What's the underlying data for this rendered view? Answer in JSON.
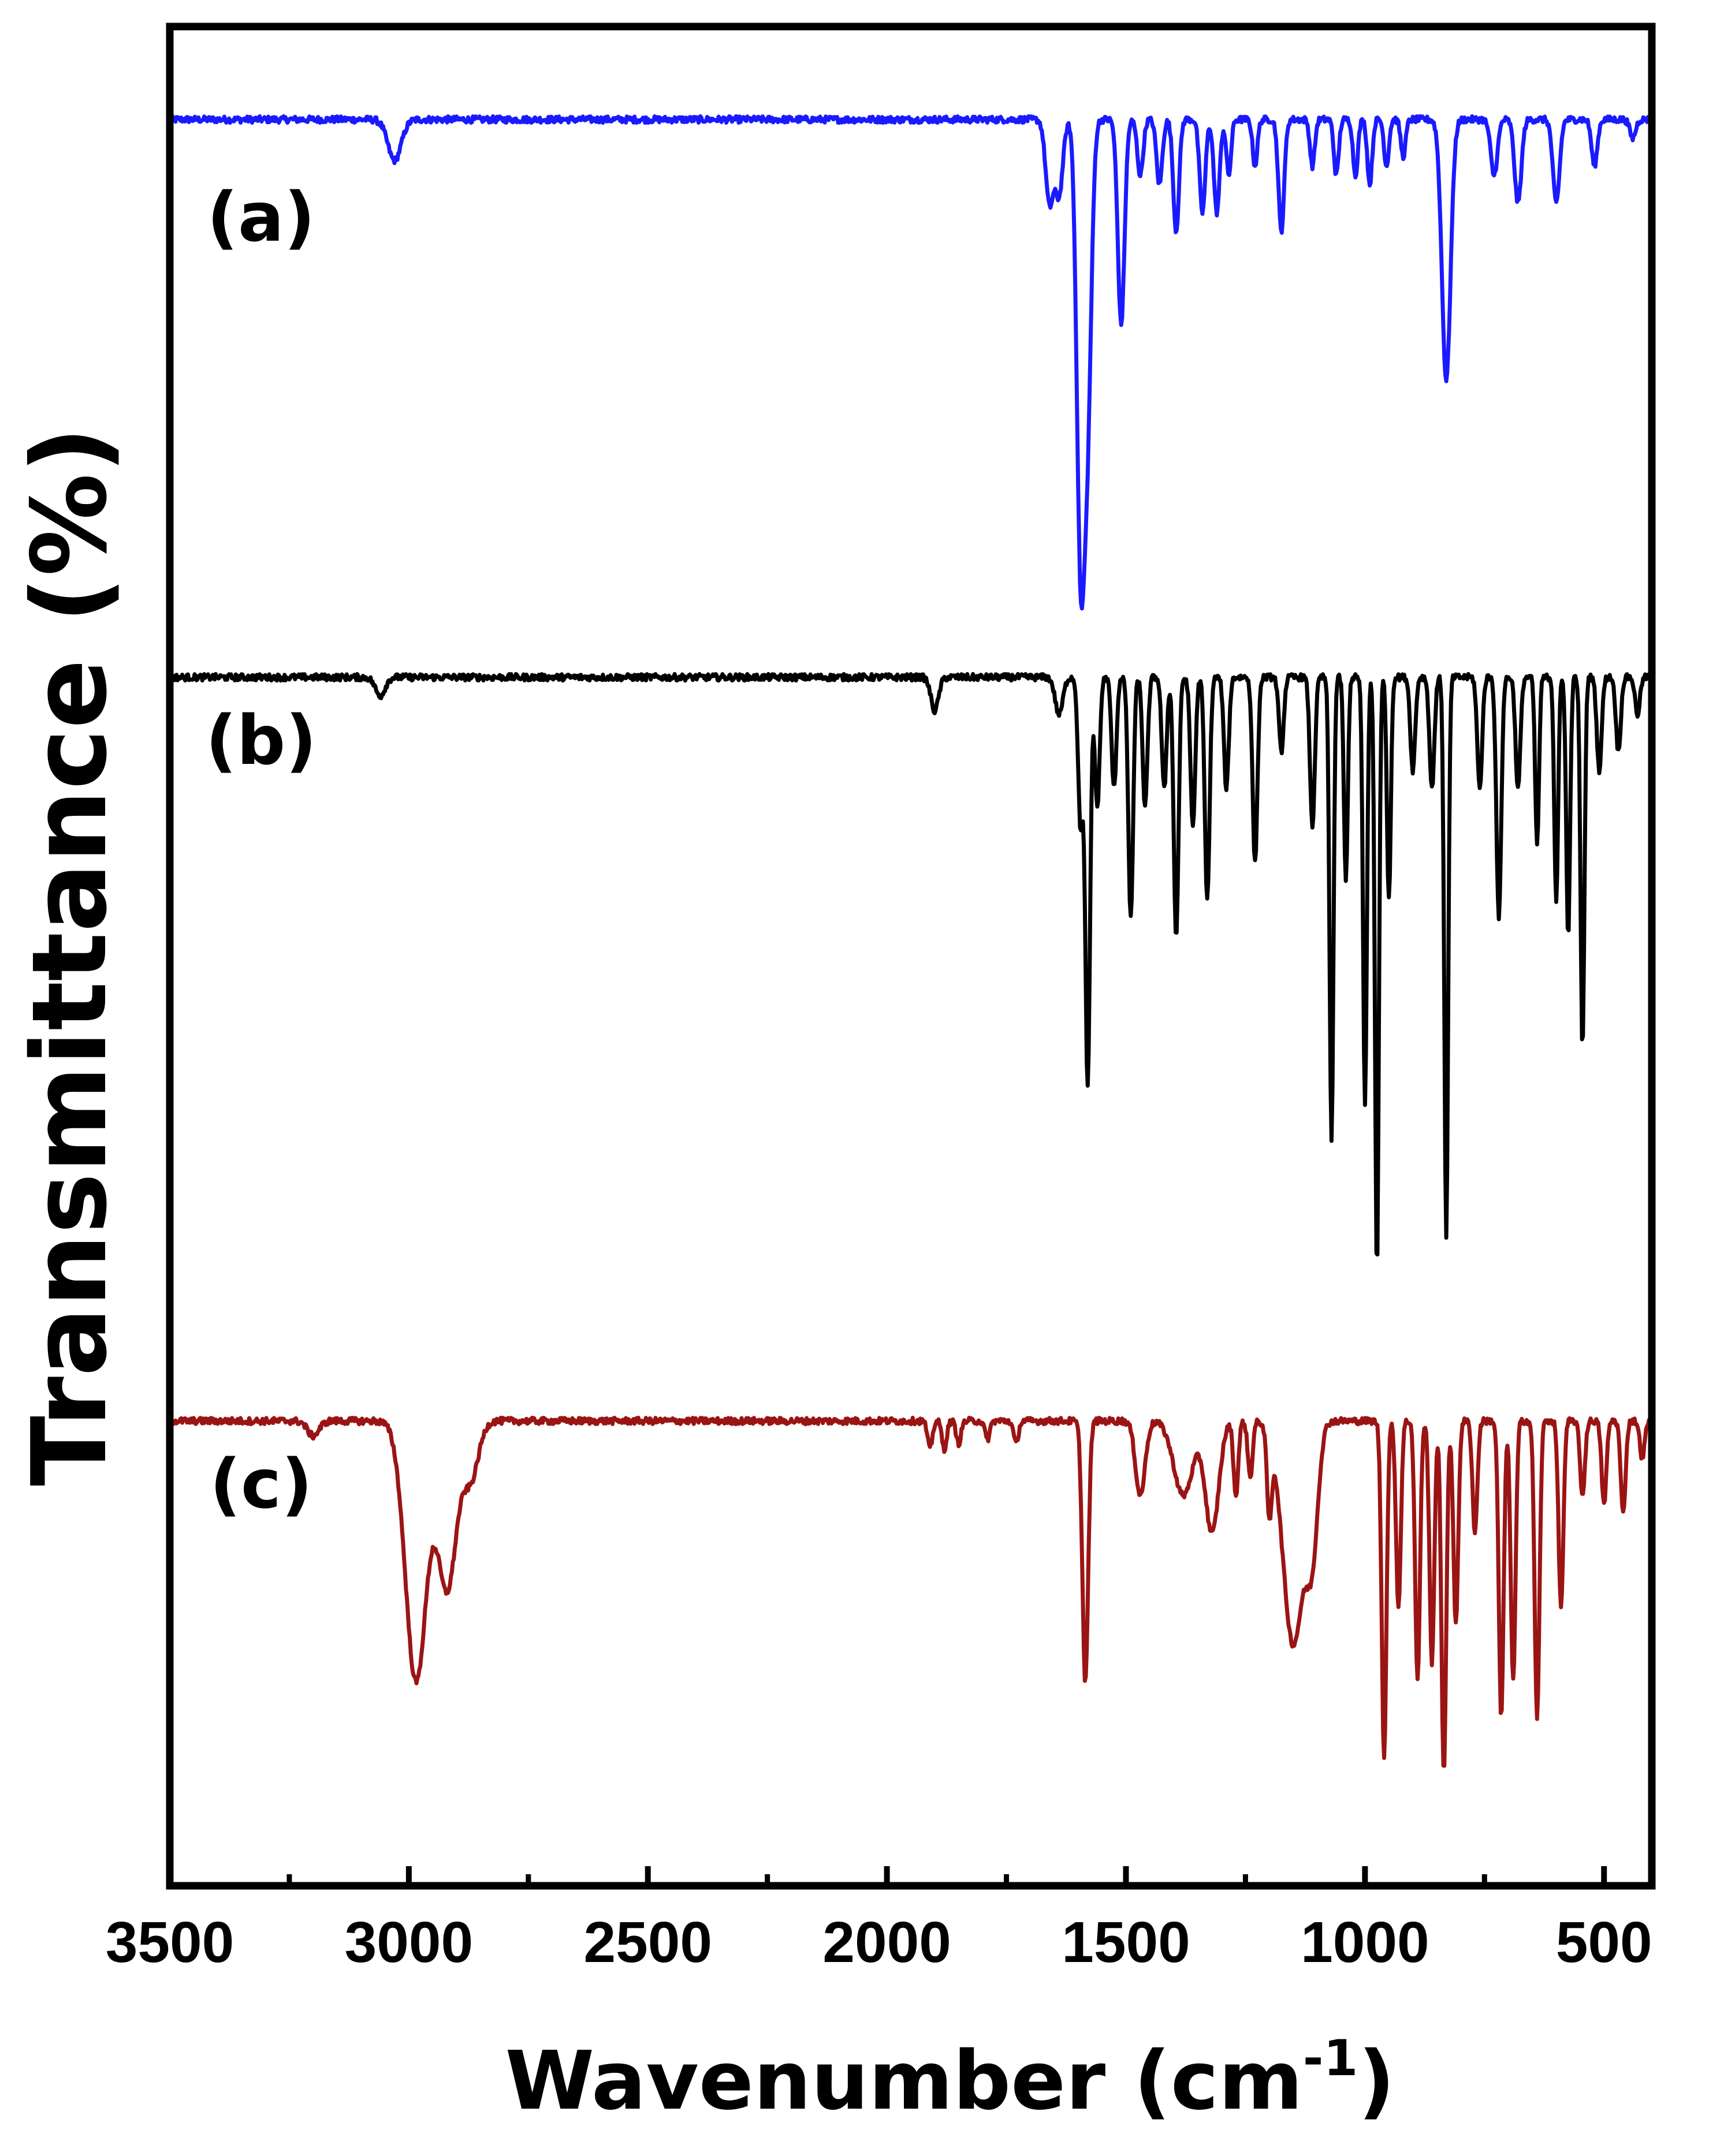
{
  "chart_data": {
    "type": "line",
    "title": "",
    "xlabel": "Wavenumber (cm",
    "xlabel_sup": "-1",
    "xlabel_close": ")",
    "ylabel": "Transmittance  (%)",
    "xlim": [
      3500,
      400
    ],
    "x_reversed": true,
    "ylim": [
      0,
      100
    ],
    "grid": false,
    "x_ticks": [
      3500,
      3000,
      2500,
      2000,
      1500,
      1000,
      500
    ],
    "x_tick_labels": [
      "3500",
      "3000",
      "2500",
      "2000",
      "1500",
      "1000",
      "500"
    ],
    "x_minor_ticks": [
      3250,
      2750,
      2250,
      1750,
      1250,
      750
    ],
    "series": [
      {
        "name": "(a)",
        "label": "(a)",
        "color": "#1a1aff",
        "baseline": 95,
        "peaks": [
          {
            "x": 3030,
            "depth": 2.2,
            "width": 14
          },
          {
            "x": 1660,
            "depth": 4.5,
            "width": 8
          },
          {
            "x": 1640,
            "depth": 4.0,
            "width": 8
          },
          {
            "x": 1595,
            "depth": 23.0,
            "width": 8
          },
          {
            "x": 1580,
            "depth": 15.0,
            "width": 8
          },
          {
            "x": 1510,
            "depth": 11.0,
            "width": 7
          },
          {
            "x": 1470,
            "depth": 3.0,
            "width": 6
          },
          {
            "x": 1430,
            "depth": 3.5,
            "width": 6
          },
          {
            "x": 1395,
            "depth": 6.0,
            "width": 6
          },
          {
            "x": 1340,
            "depth": 5.0,
            "width": 6
          },
          {
            "x": 1310,
            "depth": 5.0,
            "width": 6
          },
          {
            "x": 1285,
            "depth": 3.0,
            "width": 5
          },
          {
            "x": 1230,
            "depth": 2.5,
            "width": 5
          },
          {
            "x": 1175,
            "depth": 6.0,
            "width": 6
          },
          {
            "x": 1110,
            "depth": 2.5,
            "width": 5
          },
          {
            "x": 1060,
            "depth": 3.0,
            "width": 5
          },
          {
            "x": 1020,
            "depth": 3.0,
            "width": 5
          },
          {
            "x": 990,
            "depth": 3.5,
            "width": 5
          },
          {
            "x": 955,
            "depth": 2.5,
            "width": 5
          },
          {
            "x": 920,
            "depth": 2.0,
            "width": 5
          },
          {
            "x": 830,
            "depth": 14.0,
            "width": 9
          },
          {
            "x": 730,
            "depth": 3.0,
            "width": 7
          },
          {
            "x": 680,
            "depth": 4.5,
            "width": 7
          },
          {
            "x": 600,
            "depth": 4.5,
            "width": 7
          },
          {
            "x": 520,
            "depth": 2.5,
            "width": 6
          },
          {
            "x": 440,
            "depth": 1.0,
            "width": 6
          }
        ]
      },
      {
        "name": "(b)",
        "label": "(b)",
        "color": "#000000",
        "baseline": 65,
        "peaks": [
          {
            "x": 3060,
            "depth": 1.0,
            "width": 10
          },
          {
            "x": 1900,
            "depth": 1.8,
            "width": 8
          },
          {
            "x": 1640,
            "depth": 2.0,
            "width": 8
          },
          {
            "x": 1595,
            "depth": 8.0,
            "width": 5
          },
          {
            "x": 1580,
            "depth": 22.0,
            "width": 5
          },
          {
            "x": 1560,
            "depth": 7.0,
            "width": 5
          },
          {
            "x": 1525,
            "depth": 6.0,
            "width": 5
          },
          {
            "x": 1490,
            "depth": 13.0,
            "width": 5
          },
          {
            "x": 1460,
            "depth": 7.0,
            "width": 5
          },
          {
            "x": 1420,
            "depth": 6.0,
            "width": 5
          },
          {
            "x": 1395,
            "depth": 14.0,
            "width": 5
          },
          {
            "x": 1360,
            "depth": 8.0,
            "width": 5
          },
          {
            "x": 1330,
            "depth": 12.0,
            "width": 5
          },
          {
            "x": 1290,
            "depth": 6.0,
            "width": 5
          },
          {
            "x": 1230,
            "depth": 10.0,
            "width": 5
          },
          {
            "x": 1175,
            "depth": 4.0,
            "width": 5
          },
          {
            "x": 1110,
            "depth": 8.0,
            "width": 5
          },
          {
            "x": 1070,
            "depth": 25.0,
            "width": 4
          },
          {
            "x": 1040,
            "depth": 11.0,
            "width": 4
          },
          {
            "x": 1000,
            "depth": 23.0,
            "width": 4
          },
          {
            "x": 975,
            "depth": 32.0,
            "width": 4
          },
          {
            "x": 950,
            "depth": 12.0,
            "width": 4
          },
          {
            "x": 900,
            "depth": 5.0,
            "width": 5
          },
          {
            "x": 860,
            "depth": 6.0,
            "width": 5
          },
          {
            "x": 830,
            "depth": 30.0,
            "width": 4
          },
          {
            "x": 760,
            "depth": 6.0,
            "width": 5
          },
          {
            "x": 720,
            "depth": 13.0,
            "width": 5
          },
          {
            "x": 680,
            "depth": 6.0,
            "width": 5
          },
          {
            "x": 640,
            "depth": 9.0,
            "width": 4
          },
          {
            "x": 600,
            "depth": 12.0,
            "width": 4
          },
          {
            "x": 575,
            "depth": 14.0,
            "width": 4
          },
          {
            "x": 545,
            "depth": 20.0,
            "width": 4
          },
          {
            "x": 510,
            "depth": 5.0,
            "width": 5
          },
          {
            "x": 470,
            "depth": 4.0,
            "width": 5
          },
          {
            "x": 430,
            "depth": 2.0,
            "width": 5
          }
        ]
      },
      {
        "name": "(c)",
        "label": "(c)",
        "color": "#9b1414",
        "baseline": 25,
        "peaks": [
          {
            "x": 3200,
            "depth": 0.8,
            "width": 12
          },
          {
            "x": 2985,
            "depth": 14.0,
            "width": 22
          },
          {
            "x": 2920,
            "depth": 9.0,
            "width": 20
          },
          {
            "x": 2870,
            "depth": 3.0,
            "width": 16
          },
          {
            "x": 1910,
            "depth": 1.5,
            "width": 5
          },
          {
            "x": 1880,
            "depth": 1.5,
            "width": 5
          },
          {
            "x": 1850,
            "depth": 1.2,
            "width": 5
          },
          {
            "x": 1790,
            "depth": 1.0,
            "width": 5
          },
          {
            "x": 1730,
            "depth": 1.2,
            "width": 5
          },
          {
            "x": 1585,
            "depth": 14.0,
            "width": 6
          },
          {
            "x": 1470,
            "depth": 4.0,
            "width": 10
          },
          {
            "x": 1380,
            "depth": 4.0,
            "width": 20
          },
          {
            "x": 1320,
            "depth": 6.0,
            "width": 14
          },
          {
            "x": 1270,
            "depth": 4.0,
            "width": 5
          },
          {
            "x": 1240,
            "depth": 3.0,
            "width": 5
          },
          {
            "x": 1200,
            "depth": 4.5,
            "width": 5
          },
          {
            "x": 1150,
            "depth": 12.0,
            "width": 22
          },
          {
            "x": 1110,
            "depth": 6.0,
            "width": 12
          },
          {
            "x": 960,
            "depth": 18.0,
            "width": 5
          },
          {
            "x": 930,
            "depth": 10.0,
            "width": 5
          },
          {
            "x": 890,
            "depth": 14.0,
            "width": 5
          },
          {
            "x": 860,
            "depth": 13.0,
            "width": 5
          },
          {
            "x": 835,
            "depth": 19.0,
            "width": 5
          },
          {
            "x": 810,
            "depth": 11.0,
            "width": 5
          },
          {
            "x": 770,
            "depth": 6.0,
            "width": 5
          },
          {
            "x": 715,
            "depth": 16.0,
            "width": 5
          },
          {
            "x": 690,
            "depth": 14.0,
            "width": 5
          },
          {
            "x": 640,
            "depth": 16.0,
            "width": 5
          },
          {
            "x": 590,
            "depth": 10.0,
            "width": 5
          },
          {
            "x": 545,
            "depth": 4.0,
            "width": 5
          },
          {
            "x": 500,
            "depth": 4.5,
            "width": 5
          },
          {
            "x": 460,
            "depth": 5.0,
            "width": 5
          },
          {
            "x": 420,
            "depth": 2.0,
            "width": 5
          }
        ]
      }
    ]
  }
}
